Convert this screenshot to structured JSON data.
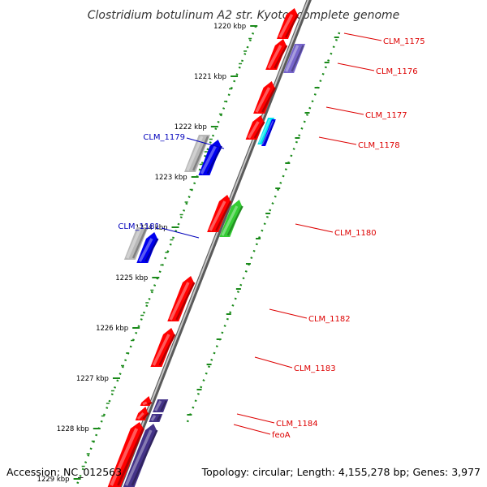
{
  "title": "Clostridium botulinum A2 str. Kyoto, complete genome",
  "footer": {
    "accession": "Accession: NC_012563",
    "summary": "Topology: circular; Length: 4,155,278 bp; Genes: 3,977"
  },
  "ticks": [
    {
      "label": "1220 kbp",
      "pos": 0
    },
    {
      "label": "1221 kbp",
      "pos": 1
    },
    {
      "label": "1222 kbp",
      "pos": 2
    },
    {
      "label": "1223 kbp",
      "pos": 3
    },
    {
      "label": "1224 kbp",
      "pos": 4
    },
    {
      "label": "1225 kbp",
      "pos": 5
    },
    {
      "label": "1226 kbp",
      "pos": 6
    },
    {
      "label": "1227 kbp",
      "pos": 7
    },
    {
      "label": "1228 kbp",
      "pos": 8
    },
    {
      "label": "1229 kbp",
      "pos": 9
    }
  ],
  "colors": {
    "backbone": "#808080",
    "scale_dots": "#1a8a1a",
    "gene_red": "#ff0000",
    "gene_blue": "#0000ee",
    "gene_purple": "#7766cc",
    "gene_navy": "#443388",
    "gene_green": "#33cc33",
    "gene_cyan": "#00e5ee",
    "gene_gray": "#b8b8b8",
    "label_red": "#dd0000",
    "label_blue": "#0000bb"
  },
  "genes": [
    {
      "label": "CLM_1175",
      "side": "right",
      "color": "gene_red"
    },
    {
      "label": "CLM_1176",
      "side": "right",
      "color": "gene_purple"
    },
    {
      "label": "CLM_1177",
      "side": "right",
      "color": "gene_red"
    },
    {
      "label": "CLM_1178",
      "side": "right",
      "color": "gene_cyan"
    },
    {
      "label": "CLM_1179",
      "side": "left",
      "color": "gene_blue"
    },
    {
      "label": "CLM_1180",
      "side": "right",
      "color": "gene_green"
    },
    {
      "label": "CLM_1181",
      "side": "left",
      "color": "gene_blue"
    },
    {
      "label": "CLM_1182",
      "side": "right",
      "color": "gene_red"
    },
    {
      "label": "CLM_1183",
      "side": "right",
      "color": "gene_red"
    },
    {
      "label": "CLM_1184",
      "side": "right",
      "color": "gene_red"
    },
    {
      "label": "feoA",
      "side": "right",
      "color": "gene_red"
    }
  ]
}
